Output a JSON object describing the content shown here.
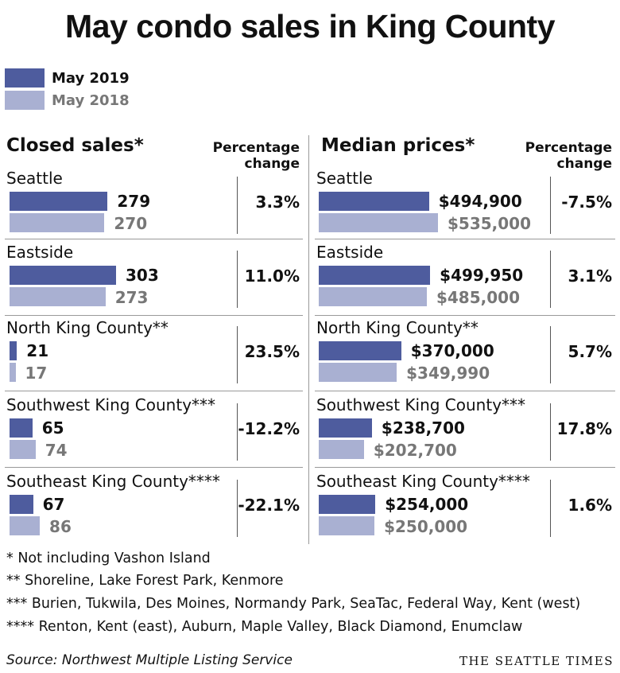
{
  "title": "May condo sales in King County",
  "legend": [
    {
      "label": "May 2019",
      "color": "#4e5c9e"
    },
    {
      "label": "May 2018",
      "color": "#a9b0d2"
    }
  ],
  "colors": {
    "current": "#4e5c9e",
    "previous": "#a9b0d2",
    "divider": "#555555"
  },
  "chart_data": [
    {
      "type": "bar",
      "title": "Closed sales*",
      "pct_header": "Percentage change",
      "categories": [
        "Seattle",
        "Eastside",
        "North King County**",
        "Southwest King County***",
        "Southeast King County****"
      ],
      "series": [
        {
          "name": "May 2019",
          "values": [
            279,
            303,
            21,
            65,
            67
          ],
          "labels": [
            "279",
            "303",
            "21",
            "65",
            "67"
          ]
        },
        {
          "name": "May 2018",
          "values": [
            270,
            273,
            17,
            74,
            86
          ],
          "labels": [
            "270",
            "273",
            "17",
            "74",
            "86"
          ]
        }
      ],
      "pct_change": [
        "3.3%",
        "11.0%",
        "23.5%",
        "-12.2%",
        "-22.1%"
      ],
      "xlim": [
        0,
        303
      ]
    },
    {
      "type": "bar",
      "title": "Median prices*",
      "pct_header": "Percentage change",
      "categories": [
        "Seattle",
        "Eastside",
        "North King County**",
        "Southwest King County***",
        "Southeast King County****"
      ],
      "series": [
        {
          "name": "May 2019",
          "values": [
            494900,
            499950,
            370000,
            238700,
            254000
          ],
          "labels": [
            "$494,900",
            "$499,950",
            "$370,000",
            "$238,700",
            "$254,000"
          ]
        },
        {
          "name": "May 2018",
          "values": [
            535000,
            485000,
            349990,
            202700,
            250000
          ],
          "labels": [
            "$535,000",
            "$485,000",
            "$349,990",
            "$202,700",
            "$250,000"
          ]
        }
      ],
      "pct_change": [
        "-7.5%",
        "3.1%",
        "5.7%",
        "17.8%",
        "1.6%"
      ],
      "xlim": [
        0,
        535000
      ]
    }
  ],
  "notes": [
    "* Not including Vashon Island",
    "** Shoreline, Lake Forest Park, Kenmore",
    "*** Burien, Tukwila, Des Moines, Normandy Park, SeaTac, Federal Way, Kent (west)",
    "**** Renton, Kent (east), Auburn, Maple Valley, Black Diamond, Enumclaw"
  ],
  "source": "Source: Northwest Multiple Listing Service",
  "brand": "THE SEATTLE TIMES"
}
